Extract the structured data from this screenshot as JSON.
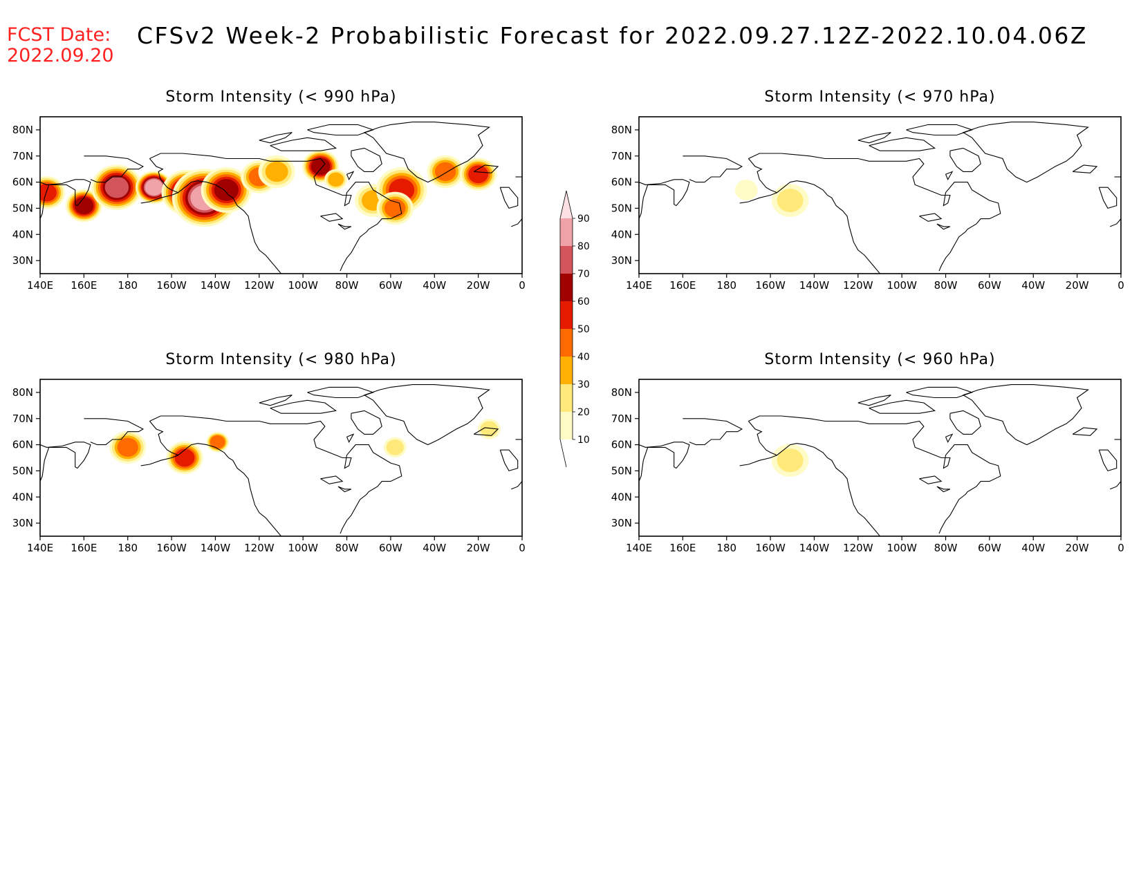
{
  "header": {
    "fcst_label": "FCST Date:",
    "fcst_date": "2022.09.20",
    "title": "CFSv2 Week-2 Probabilistic Forecast for 2022.09.27.12Z-2022.10.04.06Z"
  },
  "colors": {
    "fcst_text": "#ff2020",
    "scale": [
      "#fffbc6",
      "#ffe97a",
      "#ffb000",
      "#ff6a00",
      "#e51b00",
      "#a10000",
      "#d3545a",
      "#efa3a9",
      "#fde0e3"
    ]
  },
  "colorbar": {
    "labels": [
      "10",
      "20",
      "30",
      "40",
      "50",
      "60",
      "70",
      "80",
      "90"
    ]
  },
  "axes": {
    "lon_labels": [
      "140E",
      "160E",
      "180",
      "160W",
      "140W",
      "120W",
      "100W",
      "80W",
      "60W",
      "40W",
      "20W",
      "0"
    ],
    "lat_labels": [
      "80N",
      "70N",
      "60N",
      "50N",
      "40N",
      "30N"
    ]
  },
  "panels": [
    {
      "title": "Storm Intensity (< 990 hPa)",
      "blobs": [
        {
          "lon": 143,
          "lat": 56,
          "r": 2,
          "lvl": 4
        },
        {
          "lon": 160,
          "lat": 51,
          "r": 2,
          "lvl": 5
        },
        {
          "lon": 175,
          "lat": 58,
          "r": 3,
          "lvl": 6
        },
        {
          "lon": 192,
          "lat": 58,
          "r": 2,
          "lvl": 7
        },
        {
          "lon": 207,
          "lat": 56,
          "r": 3,
          "lvl": 6
        },
        {
          "lon": 215,
          "lat": 54,
          "r": 4,
          "lvl": 7
        },
        {
          "lon": 225,
          "lat": 57,
          "r": 3,
          "lvl": 5
        },
        {
          "lon": 240,
          "lat": 62,
          "r": 2,
          "lvl": 3
        },
        {
          "lon": 248,
          "lat": 64,
          "r": 2,
          "lvl": 2
        },
        {
          "lon": 268,
          "lat": 66,
          "r": 2,
          "lvl": 5
        },
        {
          "lon": 275,
          "lat": 61,
          "r": 1,
          "lvl": 2
        },
        {
          "lon": 292,
          "lat": 53,
          "r": 2,
          "lvl": 2
        },
        {
          "lon": 305,
          "lat": 57,
          "r": 3,
          "lvl": 4
        },
        {
          "lon": 302,
          "lat": 50,
          "r": 2,
          "lvl": 3
        },
        {
          "lon": 325,
          "lat": 64,
          "r": 2,
          "lvl": 3
        },
        {
          "lon": 340,
          "lat": 63,
          "r": 2,
          "lvl": 4
        }
      ]
    },
    {
      "title": "Storm Intensity (< 970 hPa)",
      "blobs": [
        {
          "lon": 209,
          "lat": 53,
          "r": 2,
          "lvl": 1
        },
        {
          "lon": 189,
          "lat": 57,
          "r": 1,
          "lvl": 0
        }
      ]
    },
    {
      "title": "Storm Intensity (< 980 hPa)",
      "blobs": [
        {
          "lon": 180,
          "lat": 59,
          "r": 2,
          "lvl": 3
        },
        {
          "lon": 206,
          "lat": 55,
          "r": 2,
          "lvl": 4
        },
        {
          "lon": 221,
          "lat": 61,
          "r": 1,
          "lvl": 3
        },
        {
          "lon": 302,
          "lat": 59,
          "r": 1,
          "lvl": 1
        },
        {
          "lon": 345,
          "lat": 66,
          "r": 1,
          "lvl": 1
        }
      ]
    },
    {
      "title": "Storm Intensity (< 960 hPa)",
      "blobs": [
        {
          "lon": 209,
          "lat": 54,
          "r": 2,
          "lvl": 1
        }
      ]
    }
  ]
}
